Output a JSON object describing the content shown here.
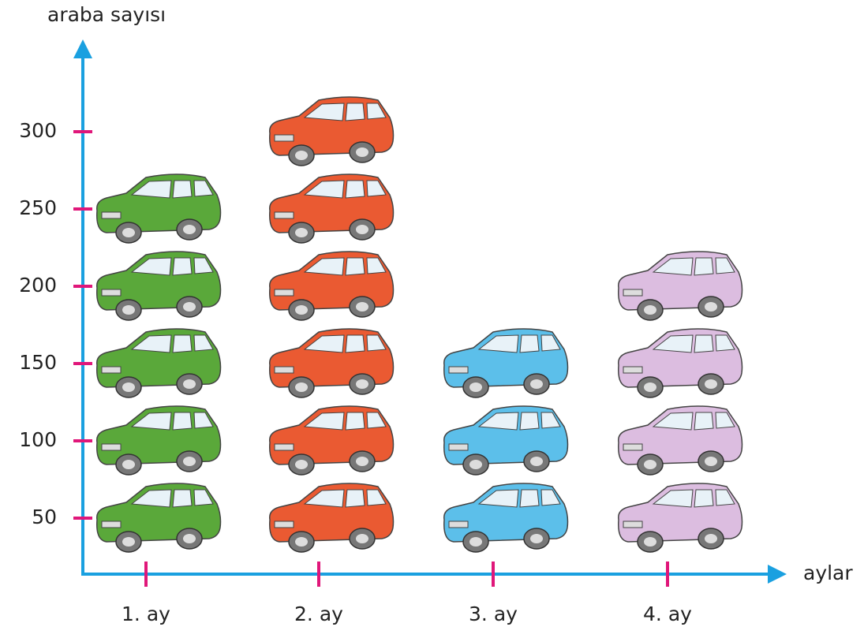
{
  "chart_data": {
    "type": "pictograph",
    "y_label": "araba sayısı",
    "x_label": "aylar",
    "categories": [
      "1. ay",
      "2. ay",
      "3. ay",
      "4. ay"
    ],
    "values": [
      250,
      300,
      150,
      200
    ],
    "colors": [
      "#5aa83a",
      "#ea5a32",
      "#5cbfea",
      "#dcbde0"
    ],
    "ylim": [
      0,
      350
    ],
    "yticks": [
      50,
      100,
      150,
      200,
      250,
      300
    ]
  }
}
